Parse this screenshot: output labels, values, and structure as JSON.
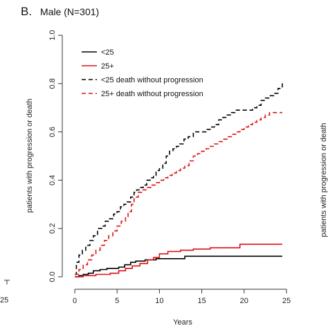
{
  "panel": {
    "letter": "B.",
    "title": "Male (N=301)"
  },
  "left_edge_tick": "25",
  "right_edge_label": "patients with progression or death",
  "chart_data": {
    "type": "line",
    "title": "Male (N=301)",
    "xlabel": "Years",
    "ylabel": "patients with progression or death",
    "xlim": [
      0,
      25
    ],
    "ylim": [
      0,
      1.0
    ],
    "x_ticks": [
      0,
      5,
      10,
      15,
      20,
      25
    ],
    "y_ticks": [
      0.0,
      0.2,
      0.4,
      0.6,
      0.8,
      1.0
    ],
    "x_tick_labels": [
      "0",
      "5",
      "10",
      "15",
      "20",
      "25"
    ],
    "y_tick_labels": [
      "0.0",
      "0.2",
      "0.4",
      "0.6",
      "0.8",
      "1.0"
    ],
    "grid": false,
    "legend_position": "top-left",
    "step": true,
    "series": [
      {
        "name": "<25",
        "color": "#000000",
        "dash": "solid",
        "x": [
          0,
          0.5,
          1.0,
          1.6,
          2.2,
          3.0,
          3.8,
          5.2,
          5.9,
          6.6,
          7.2,
          8.3,
          9.0,
          9.6,
          10.3,
          13.0,
          24.5
        ],
        "y": [
          0,
          0.005,
          0.01,
          0.015,
          0.025,
          0.03,
          0.035,
          0.04,
          0.05,
          0.06,
          0.065,
          0.07,
          0.07,
          0.075,
          0.075,
          0.085,
          0.085
        ]
      },
      {
        "name": "25+",
        "color": "#dd1111",
        "dash": "solid",
        "x": [
          0,
          1.0,
          2.5,
          4.2,
          5.2,
          6.0,
          6.8,
          7.7,
          8.6,
          9.3,
          10.0,
          11.0,
          12.5,
          14.0,
          16.0,
          19.5,
          24.5
        ],
        "y": [
          0,
          0.005,
          0.01,
          0.015,
          0.025,
          0.035,
          0.045,
          0.055,
          0.07,
          0.08,
          0.095,
          0.105,
          0.11,
          0.115,
          0.12,
          0.135,
          0.135
        ]
      },
      {
        "name": "<25 death without progression",
        "color": "#000000",
        "dash": "dashed",
        "x": [
          0,
          0.2,
          0.5,
          0.9,
          1.3,
          1.8,
          2.2,
          2.7,
          3.2,
          3.6,
          4.1,
          4.6,
          5.0,
          5.4,
          5.8,
          6.2,
          6.6,
          7.0,
          7.3,
          7.7,
          8.1,
          8.5,
          8.9,
          9.3,
          9.6,
          10.0,
          10.4,
          10.8,
          11.2,
          11.6,
          12.0,
          12.4,
          12.9,
          13.4,
          14.0,
          15.0,
          15.5,
          16.0,
          16.5,
          17.0,
          17.5,
          18.0,
          18.5,
          19.0,
          20.0,
          21.0,
          21.5,
          22.0,
          22.5,
          23.0,
          23.5,
          24.0,
          24.5
        ],
        "y": [
          0.01,
          0.06,
          0.09,
          0.11,
          0.13,
          0.15,
          0.17,
          0.2,
          0.21,
          0.23,
          0.24,
          0.26,
          0.27,
          0.29,
          0.3,
          0.31,
          0.33,
          0.35,
          0.36,
          0.37,
          0.38,
          0.4,
          0.41,
          0.42,
          0.44,
          0.45,
          0.47,
          0.5,
          0.52,
          0.53,
          0.54,
          0.55,
          0.57,
          0.58,
          0.6,
          0.6,
          0.61,
          0.62,
          0.63,
          0.65,
          0.66,
          0.67,
          0.68,
          0.69,
          0.69,
          0.7,
          0.71,
          0.73,
          0.74,
          0.75,
          0.76,
          0.78,
          0.81
        ]
      },
      {
        "name": "25+ death without progression",
        "color": "#dd1111",
        "dash": "dashed",
        "x": [
          0,
          0.5,
          1.0,
          1.5,
          2.0,
          2.5,
          3.0,
          3.5,
          4.0,
          4.5,
          5.0,
          5.5,
          6.0,
          6.3,
          6.7,
          7.0,
          7.5,
          8.0,
          8.5,
          9.0,
          9.5,
          10.0,
          10.5,
          11.0,
          11.5,
          12.0,
          12.5,
          13.0,
          13.5,
          14.0,
          14.5,
          15.0,
          15.5,
          16.0,
          16.5,
          17.0,
          17.5,
          18.0,
          18.5,
          19.0,
          19.5,
          20.0,
          20.5,
          21.0,
          21.5,
          22.0,
          22.5,
          23.0,
          24.5
        ],
        "y": [
          0.01,
          0.03,
          0.05,
          0.07,
          0.09,
          0.11,
          0.13,
          0.15,
          0.17,
          0.19,
          0.21,
          0.23,
          0.25,
          0.27,
          0.3,
          0.33,
          0.35,
          0.36,
          0.37,
          0.38,
          0.39,
          0.4,
          0.41,
          0.42,
          0.43,
          0.44,
          0.45,
          0.46,
          0.48,
          0.5,
          0.51,
          0.52,
          0.53,
          0.54,
          0.55,
          0.56,
          0.57,
          0.58,
          0.59,
          0.6,
          0.61,
          0.62,
          0.63,
          0.64,
          0.65,
          0.66,
          0.67,
          0.68,
          0.68
        ]
      }
    ]
  }
}
